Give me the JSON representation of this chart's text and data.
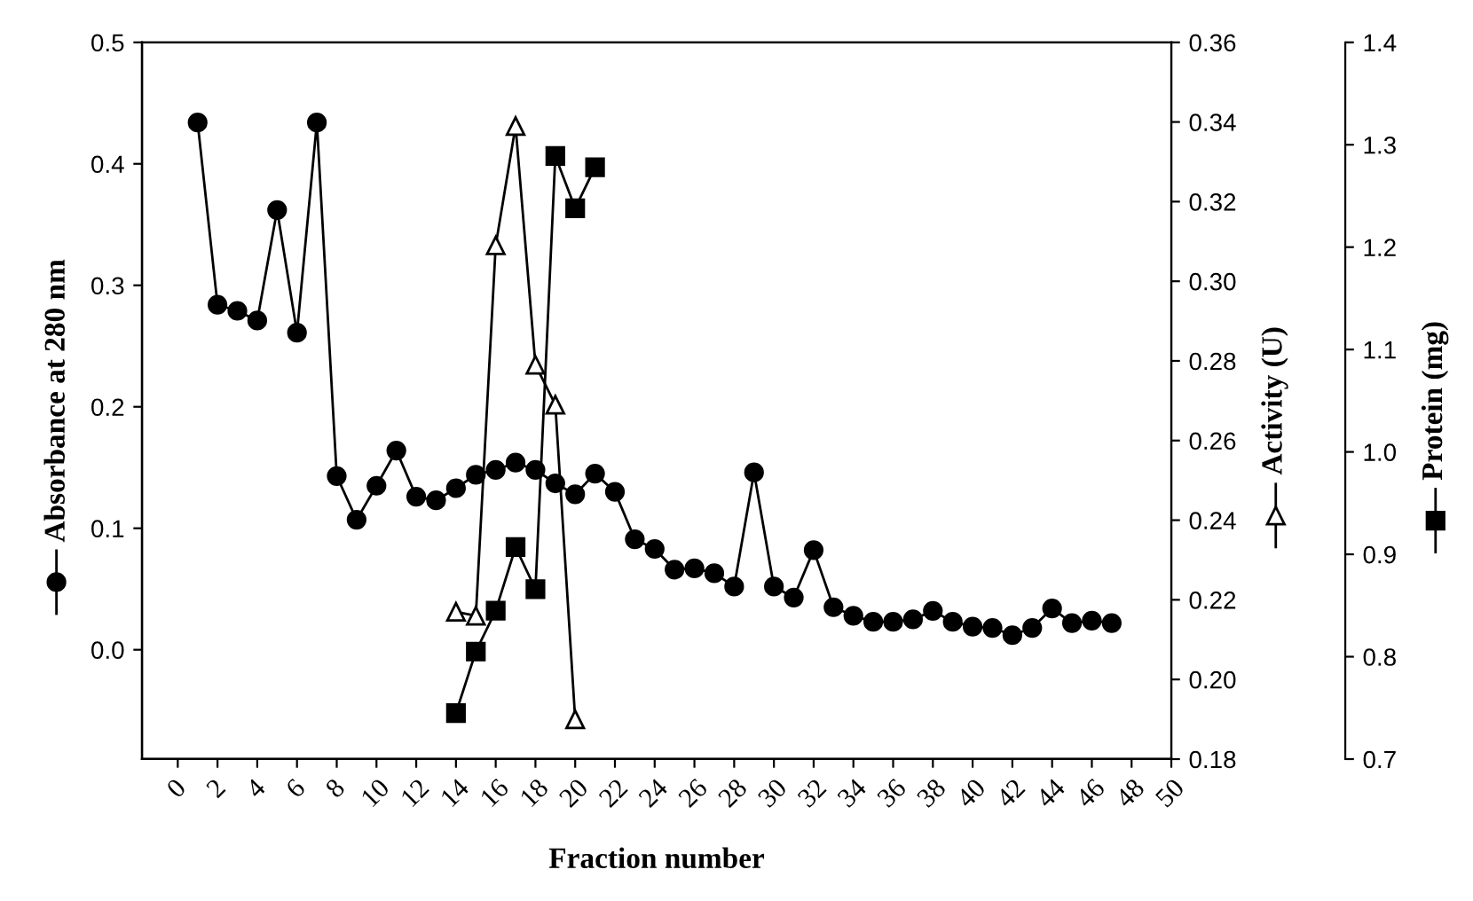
{
  "chart_data": {
    "type": "line",
    "xlabel": "Fraction number",
    "ylabel": "Absorbance at 280 nm",
    "y2label": "Activity (U)",
    "y3label": "Protein (mg)",
    "xlim": [
      -1.8,
      50
    ],
    "xticks": [
      0,
      2,
      4,
      6,
      8,
      10,
      12,
      14,
      16,
      18,
      20,
      22,
      24,
      26,
      28,
      30,
      32,
      34,
      36,
      38,
      40,
      42,
      44,
      46,
      48,
      50
    ],
    "ylim": [
      -0.09,
      0.5
    ],
    "yticks": [
      {
        "value": 0,
        "label": "0.0"
      },
      0.1,
      0.2,
      0.3,
      0.4,
      0.5
    ],
    "y2lim": [
      0.18,
      0.36
    ],
    "y2ticks": [
      0.18,
      {
        "value": 0.2,
        "label": "0.20"
      },
      0.22,
      0.24,
      0.26,
      0.28,
      {
        "value": 0.3,
        "label": "0.30"
      },
      0.32,
      0.34,
      0.36
    ],
    "y3lim": [
      0.7,
      1.4
    ],
    "y3ticks": [
      0.7,
      0.8,
      0.9,
      {
        "value": 1,
        "label": "1.0"
      },
      1.1,
      1.2,
      1.3,
      1.4
    ],
    "grid": false,
    "legend": false,
    "series": [
      {
        "marker": "circle",
        "color": "#000000",
        "x": [
          1,
          2,
          3,
          4,
          5,
          6,
          7,
          8,
          9,
          10,
          11,
          12,
          13,
          14,
          15,
          16,
          17,
          18,
          19,
          20,
          21,
          22,
          23,
          24,
          25,
          26,
          27,
          28,
          29,
          30,
          31,
          32,
          33,
          34,
          35,
          36,
          37,
          38,
          39,
          40,
          41,
          42,
          43,
          44,
          45,
          46,
          47
        ],
        "values": [
          0.434,
          0.284,
          0.279,
          0.271,
          0.362,
          0.261,
          0.434,
          0.143,
          0.107,
          0.135,
          0.164,
          0.126,
          0.123,
          0.133,
          0.144,
          0.148,
          0.154,
          0.148,
          0.137,
          0.128,
          0.145,
          0.13,
          0.091,
          0.083,
          0.066,
          0.067,
          0.063,
          0.052,
          0.146,
          0.052,
          0.043,
          0.082,
          0.035,
          0.028,
          0.023,
          0.023,
          0.025,
          0.032,
          0.023,
          0.019,
          0.018,
          0.012,
          0.018,
          0.034,
          0.022,
          0.024,
          0.022
        ]
      },
      {
        "marker": "triangle",
        "color": "#000000",
        "axis": "y2",
        "x": [
          14,
          15,
          16,
          17,
          18,
          19,
          20
        ],
        "values": [
          0.217,
          0.216,
          0.309,
          0.339,
          0.279,
          0.269,
          0.19
        ]
      },
      {
        "marker": "square",
        "color": "#000000",
        "axis": "y3",
        "x": [
          14,
          15,
          16,
          17,
          18,
          19,
          20,
          21
        ],
        "values": [
          0.745,
          0.805,
          0.845,
          0.907,
          0.866,
          1.289,
          1.238,
          1.278
        ]
      }
    ]
  }
}
